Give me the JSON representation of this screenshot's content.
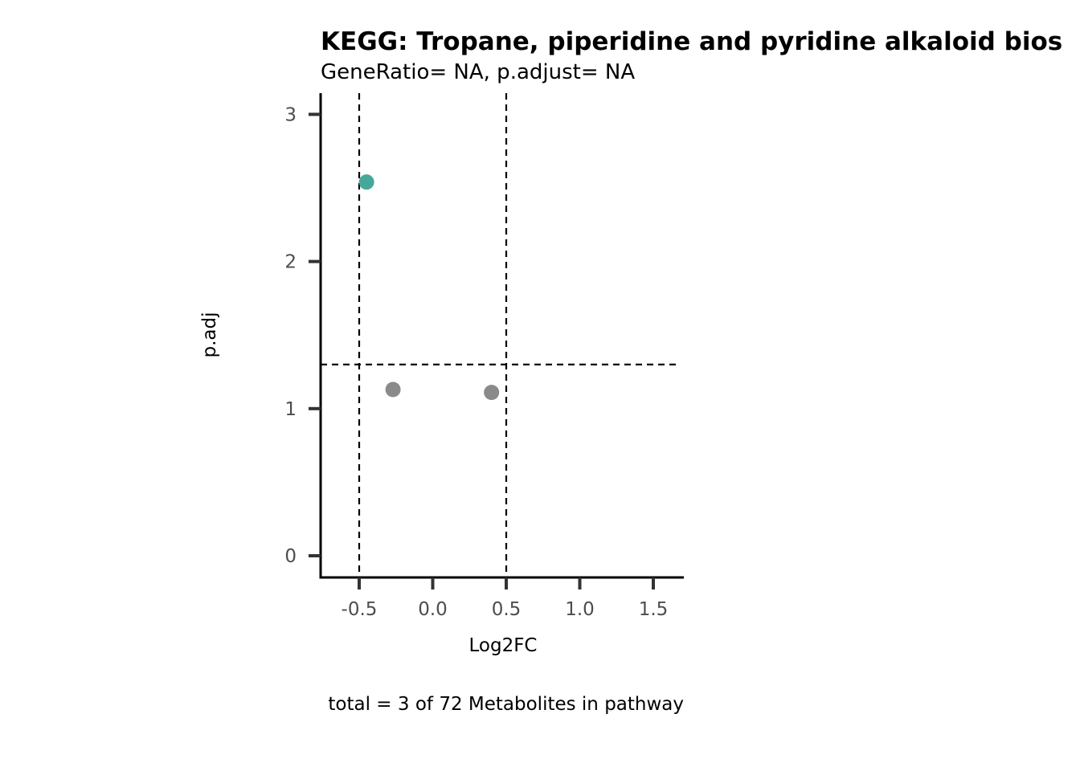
{
  "chart_data": {
    "type": "scatter",
    "title": "KEGG: Tropane, piperidine and pyridine alkaloid bios",
    "subtitle": "GeneRatio= NA, p.adjust= NA",
    "xlabel": "Log2FC",
    "ylabel": "p.adj",
    "caption": "total = 3 of 72 Metabolites in pathway",
    "xlim": [
      -0.77,
      1.7
    ],
    "ylim": [
      -0.15,
      3.15
    ],
    "x_ticks": [
      -0.5,
      0.0,
      0.5,
      1.0,
      1.5
    ],
    "x_tick_labels": [
      "-0.5",
      "0.0",
      "0.5",
      "1.0",
      "1.5"
    ],
    "y_ticks": [
      0,
      1,
      2,
      3
    ],
    "y_tick_labels": [
      "0",
      "1",
      "2",
      "3"
    ],
    "vlines": [
      -0.5,
      0.5
    ],
    "hline": 1.3,
    "grid": false,
    "legend": "none",
    "colors": {
      "significant": "#45A99A",
      "not_significant": "#8A8A8A"
    },
    "points": [
      {
        "x": -0.45,
        "y": 2.54,
        "group": "significant"
      },
      {
        "x": -0.27,
        "y": 1.13,
        "group": "not_significant"
      },
      {
        "x": 0.4,
        "y": 1.11,
        "group": "not_significant"
      }
    ]
  }
}
